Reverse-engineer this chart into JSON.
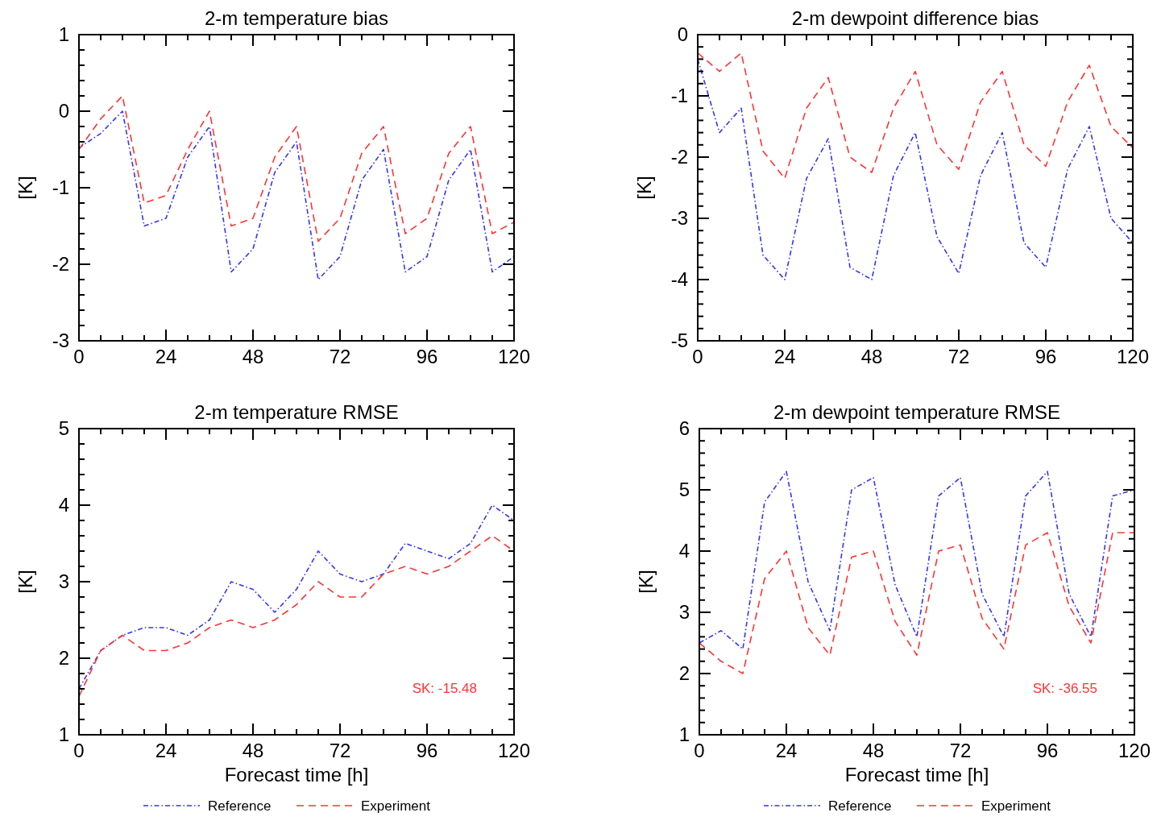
{
  "chart_data": [
    {
      "type": "line",
      "title": "2-m temperature bias",
      "ylabel": "[K]",
      "x": [
        0,
        6,
        12,
        18,
        24,
        30,
        36,
        42,
        48,
        54,
        60,
        66,
        72,
        78,
        84,
        90,
        96,
        102,
        108,
        114,
        120
      ],
      "xlim": [
        0,
        120
      ],
      "xticks": [
        0,
        {
          "value": 6,
          "label": null
        },
        {
          "value": 12,
          "label": null
        },
        {
          "value": 18,
          "label": null
        },
        24,
        {
          "value": 30,
          "label": null
        },
        {
          "value": 36,
          "label": null
        },
        {
          "value": 42,
          "label": null
        },
        48,
        {
          "value": 54,
          "label": null
        },
        {
          "value": 60,
          "label": null
        },
        {
          "value": 66,
          "label": null
        },
        72,
        {
          "value": 78,
          "label": null
        },
        {
          "value": 84,
          "label": null
        },
        {
          "value": 90,
          "label": null
        },
        96,
        {
          "value": 102,
          "label": null
        },
        {
          "value": 108,
          "label": null
        },
        {
          "value": 114,
          "label": null
        },
        120
      ],
      "ylim": [
        -3,
        1
      ],
      "yticks": [
        -3,
        {
          "value": -2.8,
          "label": null
        },
        {
          "value": -2.6,
          "label": null
        },
        {
          "value": -2.4,
          "label": null
        },
        {
          "value": -2.2,
          "label": null
        },
        -2,
        {
          "value": -1.8,
          "label": null
        },
        {
          "value": -1.6,
          "label": null
        },
        {
          "value": -1.4,
          "label": null
        },
        {
          "value": -1.2,
          "label": null
        },
        -1,
        {
          "value": -0.8,
          "label": null
        },
        {
          "value": -0.6,
          "label": null
        },
        {
          "value": -0.4,
          "label": null
        },
        {
          "value": -0.2,
          "label": null
        },
        0,
        {
          "value": 0.2,
          "label": null
        },
        {
          "value": 0.4,
          "label": null
        },
        {
          "value": 0.6,
          "label": null
        },
        {
          "value": 0.8,
          "label": null
        },
        1
      ],
      "legend": false,
      "series": [
        {
          "color": "#3333ff",
          "line_style": "dotted",
          "values": [
            -0.48,
            -0.29,
            0.0,
            -1.5,
            -1.4,
            -0.6,
            -0.2,
            -2.1,
            -1.8,
            -0.8,
            -0.4,
            -2.2,
            -1.9,
            -0.9,
            -0.5,
            -2.1,
            -1.9,
            -0.9,
            -0.5,
            -2.1,
            -1.9
          ]
        },
        {
          "color": "#ff3333",
          "line_style": "dashed",
          "values": [
            -0.5,
            -0.1,
            0.2,
            -1.2,
            -1.1,
            -0.5,
            0.0,
            -1.5,
            -1.4,
            -0.6,
            -0.2,
            -1.7,
            -1.4,
            -0.55,
            -0.2,
            -1.6,
            -1.4,
            -0.55,
            -0.2,
            -1.6,
            -1.45
          ]
        }
      ]
    },
    {
      "type": "line",
      "title": "2-m dewpoint difference bias",
      "ylabel": "[K]",
      "x": [
        0,
        6,
        12,
        18,
        24,
        30,
        36,
        42,
        48,
        54,
        60,
        66,
        72,
        78,
        84,
        90,
        96,
        102,
        108,
        114,
        120
      ],
      "xlim": [
        0,
        120
      ],
      "xticks": [
        0,
        {
          "value": 6,
          "label": null
        },
        {
          "value": 12,
          "label": null
        },
        {
          "value": 18,
          "label": null
        },
        24,
        {
          "value": 30,
          "label": null
        },
        {
          "value": 36,
          "label": null
        },
        {
          "value": 42,
          "label": null
        },
        48,
        {
          "value": 54,
          "label": null
        },
        {
          "value": 60,
          "label": null
        },
        {
          "value": 66,
          "label": null
        },
        72,
        {
          "value": 78,
          "label": null
        },
        {
          "value": 84,
          "label": null
        },
        {
          "value": 90,
          "label": null
        },
        96,
        {
          "value": 102,
          "label": null
        },
        {
          "value": 108,
          "label": null
        },
        {
          "value": 114,
          "label": null
        },
        120
      ],
      "ylim": [
        -5,
        0
      ],
      "yticks": [
        -5,
        {
          "value": -4.8,
          "label": null
        },
        {
          "value": -4.6,
          "label": null
        },
        {
          "value": -4.4,
          "label": null
        },
        {
          "value": -4.2,
          "label": null
        },
        -4,
        {
          "value": -3.8,
          "label": null
        },
        {
          "value": -3.6,
          "label": null
        },
        {
          "value": -3.4,
          "label": null
        },
        {
          "value": -3.2,
          "label": null
        },
        -3,
        {
          "value": -2.8,
          "label": null
        },
        {
          "value": -2.6,
          "label": null
        },
        {
          "value": -2.4,
          "label": null
        },
        {
          "value": -2.2,
          "label": null
        },
        -2,
        {
          "value": -1.8,
          "label": null
        },
        {
          "value": -1.6,
          "label": null
        },
        {
          "value": -1.4,
          "label": null
        },
        {
          "value": -1.2,
          "label": null
        },
        -1,
        {
          "value": -0.8,
          "label": null
        },
        {
          "value": -0.6,
          "label": null
        },
        {
          "value": -0.4,
          "label": null
        },
        {
          "value": -0.2,
          "label": null
        },
        0
      ],
      "legend": false,
      "series": [
        {
          "color": "#3333ff",
          "line_style": "dotted",
          "values": [
            -0.4,
            -1.6,
            -1.2,
            -3.6,
            -4.0,
            -2.35,
            -1.7,
            -3.8,
            -4.0,
            -2.3,
            -1.6,
            -3.3,
            -3.9,
            -2.3,
            -1.6,
            -3.4,
            -3.8,
            -2.2,
            -1.5,
            -3.0,
            -3.4
          ]
        },
        {
          "color": "#ff3333",
          "line_style": "dashed",
          "values": [
            -0.3,
            -0.6,
            -0.3,
            -1.9,
            -2.35,
            -1.2,
            -0.7,
            -2.0,
            -2.25,
            -1.2,
            -0.6,
            -1.8,
            -2.2,
            -1.1,
            -0.6,
            -1.8,
            -2.15,
            -1.1,
            -0.5,
            -1.5,
            -1.85
          ]
        }
      ]
    },
    {
      "type": "line",
      "title": "2-m temperature RMSE",
      "xlabel": "Forecast time [h]",
      "ylabel": "[K]",
      "annotations": [
        "SK: -15.48"
      ],
      "x": [
        0,
        6,
        12,
        18,
        24,
        30,
        36,
        42,
        48,
        54,
        60,
        66,
        72,
        78,
        84,
        90,
        96,
        102,
        108,
        114,
        120
      ],
      "xlim": [
        0,
        120
      ],
      "xticks": [
        0,
        {
          "value": 6,
          "label": null
        },
        {
          "value": 12,
          "label": null
        },
        {
          "value": 18,
          "label": null
        },
        24,
        {
          "value": 30,
          "label": null
        },
        {
          "value": 36,
          "label": null
        },
        {
          "value": 42,
          "label": null
        },
        48,
        {
          "value": 54,
          "label": null
        },
        {
          "value": 60,
          "label": null
        },
        {
          "value": 66,
          "label": null
        },
        72,
        {
          "value": 78,
          "label": null
        },
        {
          "value": 84,
          "label": null
        },
        {
          "value": 90,
          "label": null
        },
        96,
        {
          "value": 102,
          "label": null
        },
        {
          "value": 108,
          "label": null
        },
        {
          "value": 114,
          "label": null
        },
        120
      ],
      "ylim": [
        1,
        5
      ],
      "yticks": [
        1,
        {
          "value": 1.2,
          "label": null
        },
        {
          "value": 1.4,
          "label": null
        },
        {
          "value": 1.6,
          "label": null
        },
        {
          "value": 1.8,
          "label": null
        },
        2,
        {
          "value": 2.2,
          "label": null
        },
        {
          "value": 2.4,
          "label": null
        },
        {
          "value": 2.6,
          "label": null
        },
        {
          "value": 2.8,
          "label": null
        },
        3,
        {
          "value": 3.2,
          "label": null
        },
        {
          "value": 3.4,
          "label": null
        },
        {
          "value": 3.6,
          "label": null
        },
        {
          "value": 3.8,
          "label": null
        },
        4,
        {
          "value": 4.2,
          "label": null
        },
        {
          "value": 4.4,
          "label": null
        },
        {
          "value": 4.6,
          "label": null
        },
        {
          "value": 4.8,
          "label": null
        },
        5
      ],
      "legend": "bottom",
      "series": [
        {
          "name": "Reference",
          "color": "#3333ff",
          "line_style": "dotted",
          "values": [
            1.6,
            2.1,
            2.3,
            2.4,
            2.4,
            2.3,
            2.5,
            3.0,
            2.9,
            2.6,
            2.9,
            3.4,
            3.1,
            3.0,
            3.1,
            3.5,
            3.4,
            3.3,
            3.5,
            4.0,
            3.8
          ]
        },
        {
          "name": "Experiment",
          "color": "#ff3333",
          "line_style": "dashed",
          "values": [
            1.5,
            2.1,
            2.3,
            2.1,
            2.1,
            2.2,
            2.4,
            2.5,
            2.4,
            2.5,
            2.7,
            3.0,
            2.8,
            2.8,
            3.1,
            3.2,
            3.1,
            3.2,
            3.4,
            3.6,
            3.4
          ]
        }
      ]
    },
    {
      "type": "line",
      "title": "2-m dewpoint temperature RMSE",
      "xlabel": "Forecast time [h]",
      "ylabel": "[K]",
      "annotations": [
        "SK: -36.55"
      ],
      "x": [
        0,
        6,
        12,
        18,
        24,
        30,
        36,
        42,
        48,
        54,
        60,
        66,
        72,
        78,
        84,
        90,
        96,
        102,
        108,
        114,
        120
      ],
      "xlim": [
        0,
        120
      ],
      "xticks": [
        0,
        {
          "value": 6,
          "label": null
        },
        {
          "value": 12,
          "label": null
        },
        {
          "value": 18,
          "label": null
        },
        24,
        {
          "value": 30,
          "label": null
        },
        {
          "value": 36,
          "label": null
        },
        {
          "value": 42,
          "label": null
        },
        48,
        {
          "value": 54,
          "label": null
        },
        {
          "value": 60,
          "label": null
        },
        {
          "value": 66,
          "label": null
        },
        72,
        {
          "value": 78,
          "label": null
        },
        {
          "value": 84,
          "label": null
        },
        {
          "value": 90,
          "label": null
        },
        96,
        {
          "value": 102,
          "label": null
        },
        {
          "value": 108,
          "label": null
        },
        {
          "value": 114,
          "label": null
        },
        120
      ],
      "ylim": [
        1,
        6
      ],
      "yticks": [
        1,
        {
          "value": 1.2,
          "label": null
        },
        {
          "value": 1.4,
          "label": null
        },
        {
          "value": 1.6,
          "label": null
        },
        {
          "value": 1.8,
          "label": null
        },
        2,
        {
          "value": 2.2,
          "label": null
        },
        {
          "value": 2.4,
          "label": null
        },
        {
          "value": 2.6,
          "label": null
        },
        {
          "value": 2.8,
          "label": null
        },
        3,
        {
          "value": 3.2,
          "label": null
        },
        {
          "value": 3.4,
          "label": null
        },
        {
          "value": 3.6,
          "label": null
        },
        {
          "value": 3.8,
          "label": null
        },
        4,
        {
          "value": 4.2,
          "label": null
        },
        {
          "value": 4.4,
          "label": null
        },
        {
          "value": 4.6,
          "label": null
        },
        {
          "value": 4.8,
          "label": null
        },
        5,
        {
          "value": 5.2,
          "label": null
        },
        {
          "value": 5.4,
          "label": null
        },
        {
          "value": 5.6,
          "label": null
        },
        {
          "value": 5.8,
          "label": null
        },
        6
      ],
      "legend": "bottom",
      "series": [
        {
          "name": "Reference",
          "color": "#3333ff",
          "line_style": "dotted",
          "values": [
            2.5,
            2.7,
            2.4,
            4.8,
            5.3,
            3.5,
            2.7,
            5.0,
            5.2,
            3.45,
            2.6,
            4.9,
            5.2,
            3.3,
            2.6,
            4.9,
            5.3,
            3.3,
            2.6,
            4.9,
            5.0
          ]
        },
        {
          "name": "Experiment",
          "color": "#ff3333",
          "line_style": "dashed",
          "values": [
            2.5,
            2.2,
            2.0,
            3.55,
            4.0,
            2.75,
            2.3,
            3.9,
            4.0,
            2.85,
            2.3,
            4.0,
            4.1,
            2.9,
            2.4,
            4.1,
            4.3,
            3.1,
            2.5,
            4.3,
            4.3
          ]
        }
      ]
    }
  ]
}
